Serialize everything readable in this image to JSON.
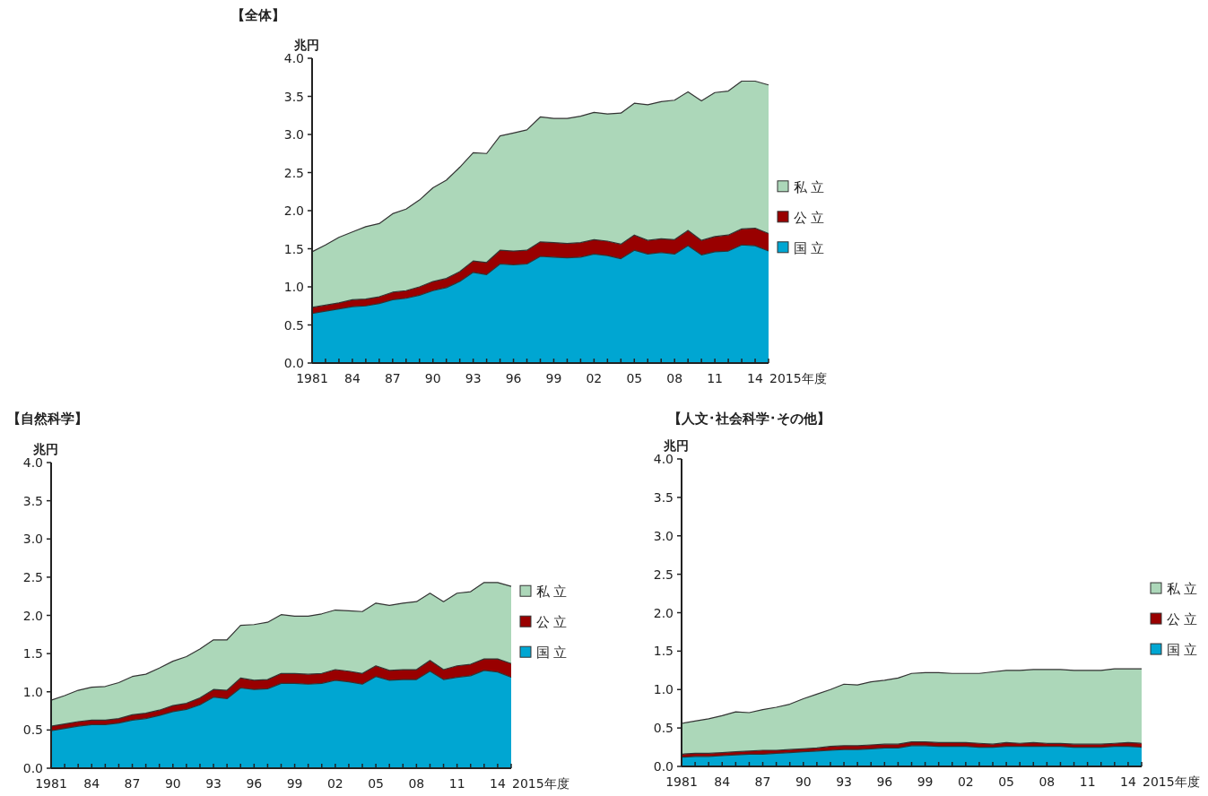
{
  "chart_data": [
    {
      "type": "area",
      "stacked": true,
      "title": "【全体】",
      "ylabel": "兆円",
      "xlabel": "2015年度",
      "legend": "right",
      "categories": [
        "1981",
        null,
        null,
        "84",
        null,
        null,
        "87",
        null,
        null,
        "90",
        null,
        null,
        "93",
        null,
        null,
        "96",
        null,
        null,
        "99",
        null,
        null,
        "02",
        null,
        null,
        "05",
        null,
        null,
        "08",
        null,
        null,
        "11",
        null,
        null,
        "14",
        null
      ],
      "ylim": [
        0,
        4
      ],
      "yticks": [
        {
          "value": 0,
          "label": "0.0"
        },
        {
          "value": 0.5,
          "label": "0.5"
        },
        {
          "value": 1,
          "label": "1.0"
        },
        {
          "value": 1.5,
          "label": "1.5"
        },
        {
          "value": 2,
          "label": "2.0"
        },
        {
          "value": 2.5,
          "label": "2.5"
        },
        {
          "value": 3,
          "label": "3.0"
        },
        {
          "value": 3.5,
          "label": "3.5"
        },
        {
          "value": 4,
          "label": "4.0"
        }
      ],
      "series": [
        {
          "name": "国立",
          "color": "#00a6d2",
          "values": [
            0.65,
            0.68,
            0.71,
            0.74,
            0.75,
            0.78,
            0.83,
            0.85,
            0.89,
            0.95,
            0.99,
            1.07,
            1.19,
            1.16,
            1.3,
            1.29,
            1.3,
            1.4,
            1.39,
            1.38,
            1.39,
            1.43,
            1.41,
            1.37,
            1.48,
            1.43,
            1.45,
            1.43,
            1.54,
            1.42,
            1.46,
            1.47,
            1.55,
            1.54,
            1.47
          ]
        },
        {
          "name": "公立",
          "color": "#990000",
          "values": [
            0.08,
            0.08,
            0.08,
            0.09,
            0.09,
            0.09,
            0.1,
            0.1,
            0.11,
            0.12,
            0.12,
            0.13,
            0.15,
            0.16,
            0.18,
            0.18,
            0.18,
            0.19,
            0.19,
            0.19,
            0.19,
            0.19,
            0.19,
            0.19,
            0.2,
            0.18,
            0.18,
            0.19,
            0.2,
            0.19,
            0.2,
            0.21,
            0.21,
            0.23,
            0.23
          ]
        },
        {
          "name": "私立",
          "color": "#acd7b9",
          "values": [
            0.73,
            0.79,
            0.86,
            0.89,
            0.95,
            0.96,
            1.03,
            1.07,
            1.14,
            1.23,
            1.29,
            1.37,
            1.42,
            1.43,
            1.5,
            1.55,
            1.58,
            1.64,
            1.63,
            1.64,
            1.66,
            1.67,
            1.67,
            1.72,
            1.73,
            1.78,
            1.8,
            1.83,
            1.82,
            1.83,
            1.89,
            1.89,
            1.94,
            1.93,
            1.95
          ]
        }
      ]
    },
    {
      "type": "area",
      "stacked": true,
      "title": "【自然科学】",
      "ylabel": "兆円",
      "xlabel": "2015年度",
      "legend": "right",
      "categories": [
        "1981",
        null,
        null,
        "84",
        null,
        null,
        "87",
        null,
        null,
        "90",
        null,
        null,
        "93",
        null,
        null,
        "96",
        null,
        null,
        "99",
        null,
        null,
        "02",
        null,
        null,
        "05",
        null,
        null,
        "08",
        null,
        null,
        "11",
        null,
        null,
        "14",
        null
      ],
      "ylim": [
        0,
        4
      ],
      "yticks": [
        {
          "value": 0,
          "label": "0.0"
        },
        {
          "value": 0.5,
          "label": "0.5"
        },
        {
          "value": 1,
          "label": "1.0"
        },
        {
          "value": 1.5,
          "label": "1.5"
        },
        {
          "value": 2,
          "label": "2.0"
        },
        {
          "value": 2.5,
          "label": "2.5"
        },
        {
          "value": 3,
          "label": "3.0"
        },
        {
          "value": 3.5,
          "label": "3.5"
        },
        {
          "value": 4,
          "label": "4.0"
        }
      ],
      "series": [
        {
          "name": "国立",
          "color": "#00a6d2",
          "values": [
            0.49,
            0.52,
            0.55,
            0.57,
            0.57,
            0.59,
            0.63,
            0.65,
            0.69,
            0.74,
            0.77,
            0.83,
            0.93,
            0.91,
            1.05,
            1.03,
            1.04,
            1.11,
            1.11,
            1.1,
            1.11,
            1.15,
            1.13,
            1.1,
            1.2,
            1.15,
            1.16,
            1.16,
            1.27,
            1.16,
            1.19,
            1.21,
            1.28,
            1.26,
            1.19
          ]
        },
        {
          "name": "公立",
          "color": "#990000",
          "values": [
            0.06,
            0.06,
            0.06,
            0.06,
            0.06,
            0.06,
            0.07,
            0.07,
            0.07,
            0.08,
            0.08,
            0.09,
            0.1,
            0.11,
            0.13,
            0.12,
            0.12,
            0.13,
            0.13,
            0.13,
            0.13,
            0.14,
            0.14,
            0.14,
            0.14,
            0.13,
            0.13,
            0.13,
            0.14,
            0.13,
            0.15,
            0.15,
            0.15,
            0.17,
            0.18
          ]
        },
        {
          "name": "私立",
          "color": "#acd7b9",
          "values": [
            0.34,
            0.37,
            0.41,
            0.43,
            0.44,
            0.47,
            0.5,
            0.51,
            0.55,
            0.58,
            0.61,
            0.64,
            0.65,
            0.66,
            0.69,
            0.73,
            0.75,
            0.77,
            0.75,
            0.76,
            0.78,
            0.78,
            0.79,
            0.81,
            0.82,
            0.85,
            0.87,
            0.89,
            0.88,
            0.89,
            0.95,
            0.95,
            1.0,
            1.0,
            1.01
          ]
        }
      ]
    },
    {
      "type": "area",
      "stacked": true,
      "title": "【人文･社会科学･その他】",
      "ylabel": "兆円",
      "xlabel": "2015年度",
      "legend": "right",
      "categories": [
        "1981",
        null,
        null,
        "84",
        null,
        null,
        "87",
        null,
        null,
        "90",
        null,
        null,
        "93",
        null,
        null,
        "96",
        null,
        null,
        "99",
        null,
        null,
        "02",
        null,
        null,
        "05",
        null,
        null,
        "08",
        null,
        null,
        "11",
        null,
        null,
        "14",
        null
      ],
      "ylim": [
        0,
        4
      ],
      "yticks": [
        {
          "value": 0,
          "label": "0.0"
        },
        {
          "value": 0.5,
          "label": "0.5"
        },
        {
          "value": 1,
          "label": "1.0"
        },
        {
          "value": 1.5,
          "label": "1.5"
        },
        {
          "value": 2,
          "label": "2.0"
        },
        {
          "value": 2.5,
          "label": "2.5"
        },
        {
          "value": 3,
          "label": "3.0"
        },
        {
          "value": 3.5,
          "label": "3.5"
        },
        {
          "value": 4,
          "label": "4.0"
        }
      ],
      "series": [
        {
          "name": "国立",
          "color": "#00a6d2",
          "values": [
            0.12,
            0.13,
            0.13,
            0.14,
            0.15,
            0.16,
            0.16,
            0.17,
            0.18,
            0.19,
            0.2,
            0.21,
            0.22,
            0.22,
            0.23,
            0.24,
            0.24,
            0.27,
            0.27,
            0.26,
            0.26,
            0.26,
            0.25,
            0.25,
            0.26,
            0.26,
            0.26,
            0.26,
            0.26,
            0.25,
            0.25,
            0.25,
            0.26,
            0.26,
            0.25
          ]
        },
        {
          "name": "公立",
          "color": "#990000",
          "values": [
            0.04,
            0.04,
            0.04,
            0.04,
            0.04,
            0.04,
            0.05,
            0.04,
            0.04,
            0.04,
            0.04,
            0.05,
            0.05,
            0.05,
            0.05,
            0.05,
            0.05,
            0.05,
            0.05,
            0.05,
            0.05,
            0.05,
            0.05,
            0.04,
            0.05,
            0.04,
            0.05,
            0.04,
            0.04,
            0.04,
            0.04,
            0.04,
            0.04,
            0.05,
            0.05
          ]
        },
        {
          "name": "私立",
          "color": "#acd7b9",
          "values": [
            0.4,
            0.42,
            0.45,
            0.48,
            0.52,
            0.5,
            0.53,
            0.56,
            0.59,
            0.65,
            0.7,
            0.74,
            0.8,
            0.79,
            0.82,
            0.83,
            0.86,
            0.89,
            0.9,
            0.91,
            0.9,
            0.9,
            0.91,
            0.94,
            0.94,
            0.95,
            0.95,
            0.96,
            0.96,
            0.96,
            0.96,
            0.96,
            0.97,
            0.96,
            0.97
          ]
        }
      ]
    }
  ]
}
